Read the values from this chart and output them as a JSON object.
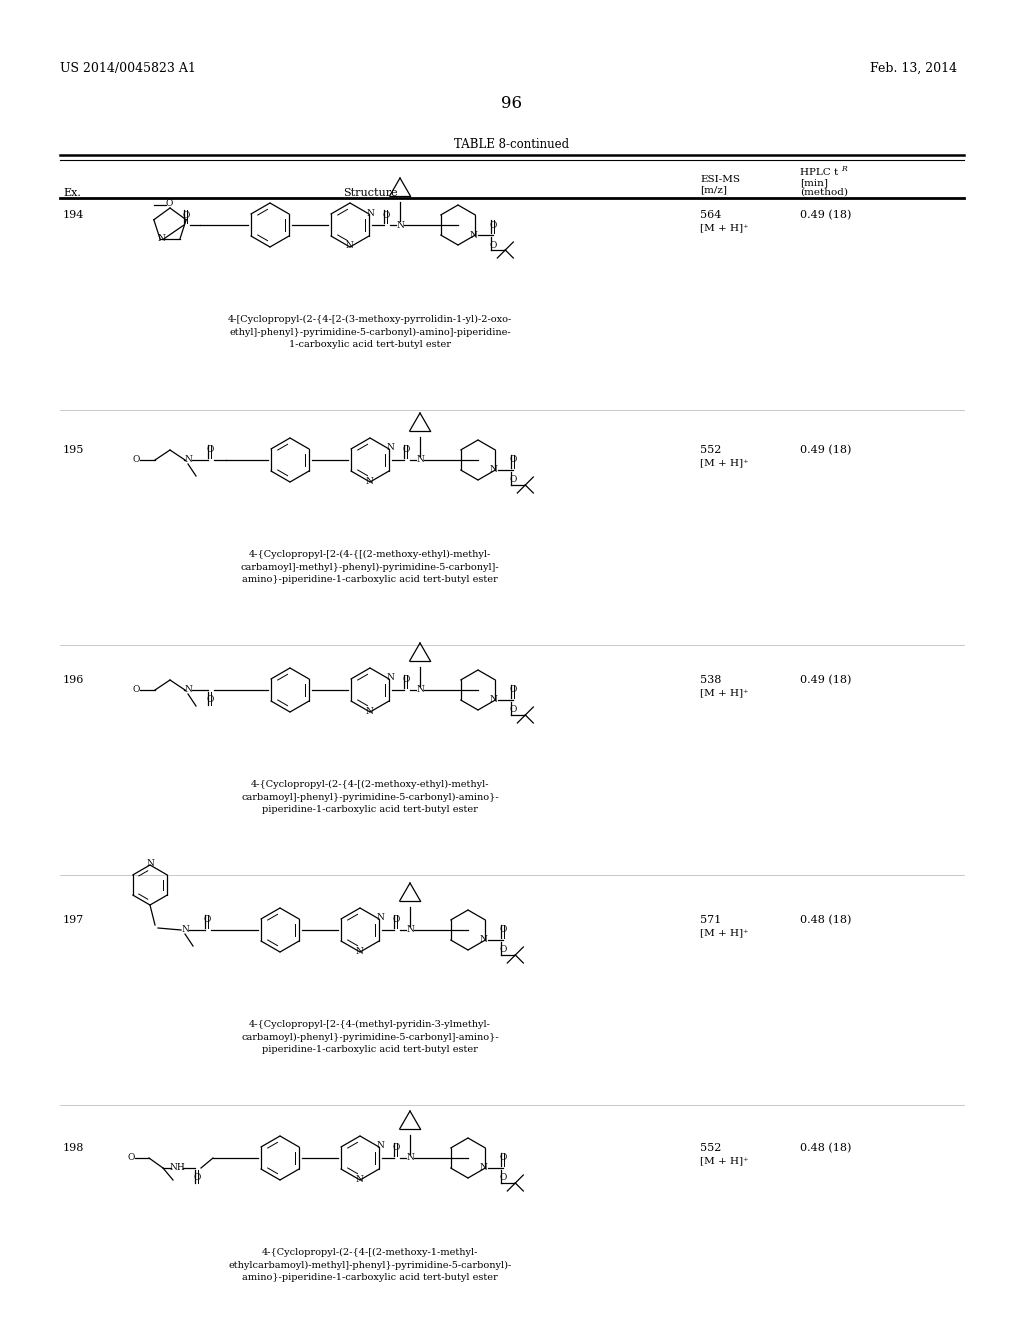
{
  "page_header_left": "US 2014/0045823 A1",
  "page_header_right": "Feb. 13, 2014",
  "page_number": "96",
  "table_title": "TABLE 8-continued",
  "entries": [
    {
      "ex": "194",
      "esi_ms": "564",
      "mh": "[M + H]⁺",
      "hplc": "0.49 (18)",
      "name": "4-[Cyclopropyl-(2-{4-[2-(3-methoxy-pyrrolidin-1-yl)-2-oxo-\nethyl]-phenyl}-pyrimidine-5-carbonyl)-amino]-piperidine-\n1-carboxylic acid tert-butyl ester"
    },
    {
      "ex": "195",
      "esi_ms": "552",
      "mh": "[M + H]⁺",
      "hplc": "0.49 (18)",
      "name": "4-{Cyclopropyl-[2-(4-{[(2-methoxy-ethyl)-methyl-\ncarbamoyl]-methyl}-phenyl)-pyrimidine-5-carbonyl]-\namino}-piperidine-1-carboxylic acid tert-butyl ester"
    },
    {
      "ex": "196",
      "esi_ms": "538",
      "mh": "[M + H]⁺",
      "hplc": "0.49 (18)",
      "name": "4-{Cyclopropyl-(2-{4-[(2-methoxy-ethyl)-methyl-\ncarbamoyl]-phenyl}-pyrimidine-5-carbonyl)-amino}-\npiperidine-1-carboxylic acid tert-butyl ester"
    },
    {
      "ex": "197",
      "esi_ms": "571",
      "mh": "[M + H]⁺",
      "hplc": "0.48 (18)",
      "name": "4-{Cyclopropyl-[2-{4-(methyl-pyridin-3-ylmethyl-\ncarbamoyl)-phenyl}-pyrimidine-5-carbonyl]-amino}-\npiperidine-1-carboxylic acid tert-butyl ester"
    },
    {
      "ex": "198",
      "esi_ms": "552",
      "mh": "[M + H]⁺",
      "hplc": "0.48 (18)",
      "name": "4-{Cyclopropyl-(2-{4-[(2-methoxy-1-methyl-\nethylcarbamoyl)-methyl]-phenyl}-pyrimidine-5-carbonyl)-\namino}-piperidine-1-carboxylic acid tert-butyl ester"
    }
  ]
}
